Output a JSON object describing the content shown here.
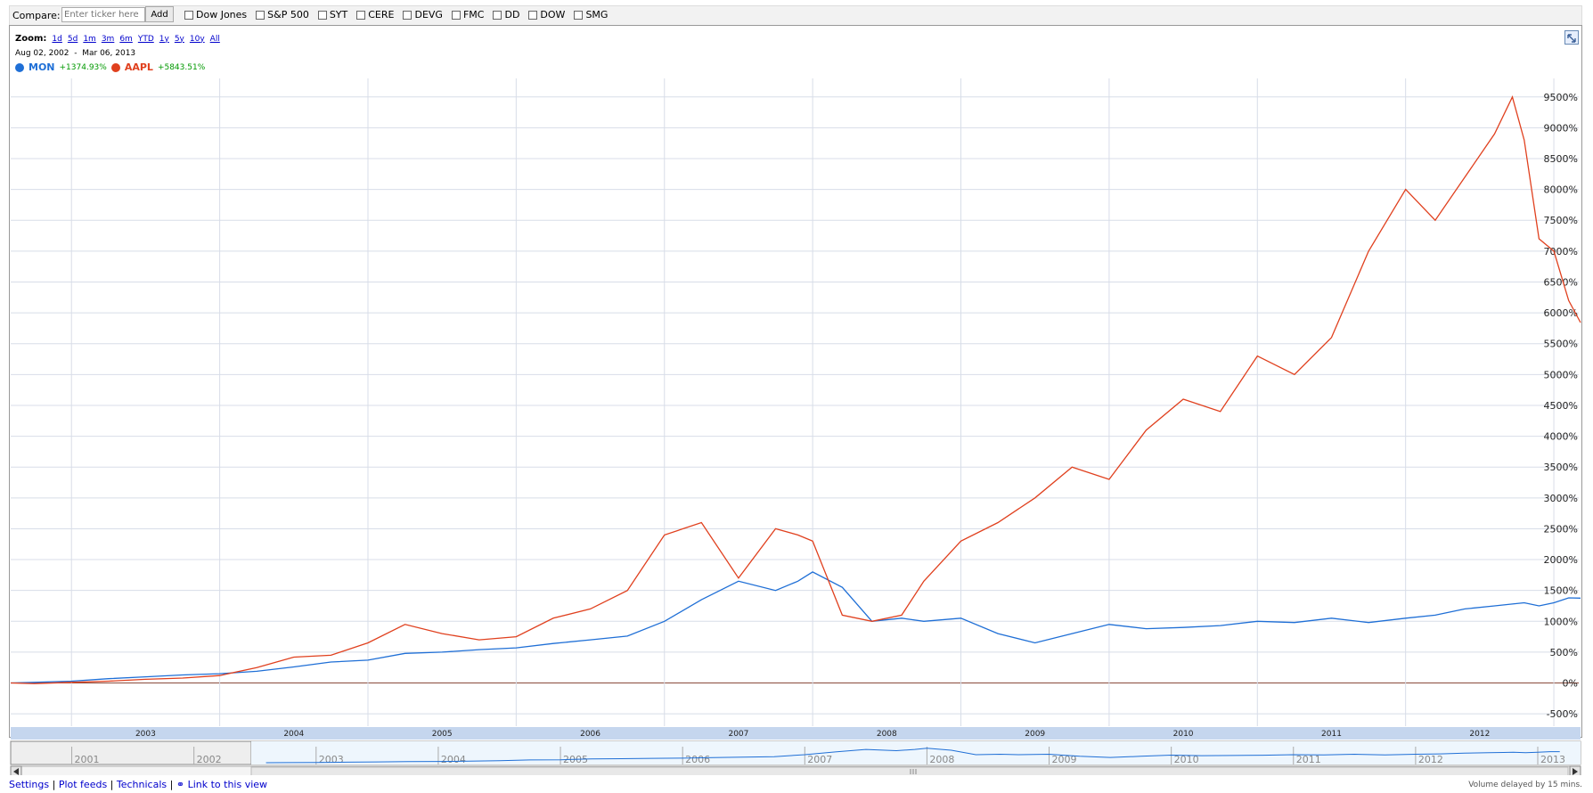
{
  "compare": {
    "label": "Compare:",
    "input_placeholder": "Enter ticker here",
    "add_label": "Add",
    "options": [
      "Dow Jones",
      "S&P 500",
      "SYT",
      "CERE",
      "DEVG",
      "FMC",
      "DD",
      "DOW",
      "SMG"
    ]
  },
  "zoom": {
    "label": "Zoom:",
    "options": [
      "1d",
      "5d",
      "1m",
      "3m",
      "6m",
      "YTD",
      "1y",
      "5y",
      "10y",
      "All"
    ]
  },
  "range": {
    "start": "Aug 02, 2002",
    "sep": "-",
    "end": "Mar 06, 2013"
  },
  "legend": [
    {
      "ticker": "MON",
      "change": "+1374.93%",
      "color": "#1f6fd6"
    },
    {
      "ticker": "AAPL",
      "change": "+5843.51%",
      "color": "#e0401e"
    }
  ],
  "footer": {
    "links": [
      "Settings",
      "Plot feeds",
      "Technicals",
      "Link to this view"
    ],
    "separator": "|",
    "delay": "Volume delayed by 15 mins."
  },
  "chart_data": {
    "type": "line",
    "x": [
      2002.59,
      2002.75,
      2003.0,
      2003.25,
      2003.5,
      2003.75,
      2004.0,
      2004.25,
      2004.5,
      2004.75,
      2005.0,
      2005.25,
      2005.5,
      2005.75,
      2006.0,
      2006.25,
      2006.5,
      2006.75,
      2007.0,
      2007.25,
      2007.5,
      2007.75,
      2007.9,
      2008.0,
      2008.2,
      2008.4,
      2008.6,
      2008.75,
      2009.0,
      2009.25,
      2009.5,
      2009.75,
      2010.0,
      2010.25,
      2010.5,
      2010.75,
      2011.0,
      2011.25,
      2011.5,
      2011.75,
      2012.0,
      2012.2,
      2012.4,
      2012.6,
      2012.72,
      2012.8,
      2012.9,
      2013.0,
      2013.1,
      2013.18
    ],
    "series": [
      {
        "name": "MON",
        "color": "#1f6fd6",
        "values": [
          0,
          10,
          30,
          70,
          100,
          130,
          150,
          190,
          260,
          340,
          370,
          480,
          500,
          540,
          570,
          640,
          700,
          760,
          1000,
          1350,
          1650,
          1500,
          1650,
          1800,
          1550,
          1000,
          1050,
          1000,
          1050,
          800,
          650,
          800,
          950,
          880,
          900,
          930,
          1000,
          980,
          1050,
          980,
          1050,
          1100,
          1200,
          1250,
          1280,
          1300,
          1250,
          1300,
          1380,
          1375
        ]
      },
      {
        "name": "AAPL",
        "color": "#e0401e",
        "values": [
          0,
          -10,
          10,
          30,
          60,
          80,
          120,
          250,
          420,
          450,
          650,
          950,
          800,
          700,
          750,
          1050,
          1200,
          1500,
          2400,
          2600,
          1700,
          2500,
          2400,
          2300,
          1100,
          1000,
          1100,
          1650,
          2300,
          2600,
          3000,
          3500,
          3300,
          4100,
          4600,
          4400,
          5300,
          5000,
          5600,
          7000,
          8000,
          7500,
          8200,
          8900,
          9500,
          8800,
          7200,
          7000,
          6200,
          5843
        ]
      }
    ],
    "x_tick_labels": [
      "2003",
      "2004",
      "2005",
      "2006",
      "2007",
      "2008",
      "2009",
      "2010",
      "2011",
      "2012"
    ],
    "y_ticks": [
      -500,
      0,
      500,
      1000,
      1500,
      2000,
      2500,
      3000,
      3500,
      4000,
      4500,
      5000,
      5500,
      6000,
      6500,
      7000,
      7500,
      8000,
      8500,
      9000,
      9500
    ],
    "y_tick_suffix": "%",
    "xlim": [
      2002.59,
      2013.18
    ],
    "ylim": [
      -700,
      9800
    ],
    "grid": true,
    "navigator_labels": [
      "2001",
      "2002",
      "2003",
      "2004",
      "2005",
      "2006",
      "2007",
      "2008",
      "2009",
      "2010",
      "2011",
      "2012",
      "2013"
    ],
    "navigator_range": [
      2000.5,
      2013.35
    ],
    "title": "",
    "xlabel": "",
    "ylabel": ""
  }
}
